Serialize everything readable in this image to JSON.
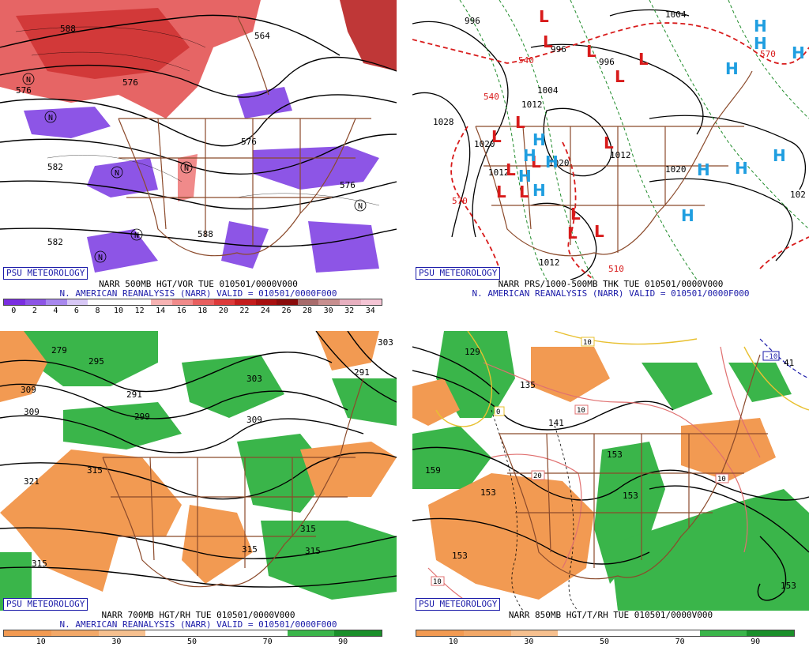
{
  "badge": "PSU METEOROLOGY",
  "panels": [
    {
      "id": "p1",
      "title": "NARR 500MB HGT/VOR TUE 010501/0000V000",
      "subtitle": "N. AMERICAN REANALYSIS (NARR) VALID = 010501/0000F000",
      "colorbar": {
        "labels": [
          "0",
          "2",
          "4",
          "6",
          "8",
          "10",
          "12",
          "14",
          "16",
          "18",
          "20",
          "22",
          "24",
          "26",
          "28",
          "30",
          "32",
          "34"
        ],
        "colors": [
          "#7a2ee0",
          "#8d55e6",
          "#a888ee",
          "#d8c8f6",
          "#ffffff",
          "#ffffff",
          "#ffffff",
          "#f7b3b3",
          "#f08a8a",
          "#e85f5f",
          "#dd3a3a",
          "#c41c1c",
          "#a80f0f",
          "#8a0b0b",
          "#a86b6b",
          "#c88f8f",
          "#e8b0c0",
          "#f5c5d5"
        ]
      },
      "contour_labels": [
        "588",
        "576",
        "576",
        "582",
        "576",
        "582",
        "564",
        "588",
        "576"
      ],
      "symbols": [
        "N",
        "N",
        "N",
        "N",
        "N",
        "N",
        "N"
      ]
    },
    {
      "id": "p2",
      "title": "NARR PRS/1000-500MB THK TUE 010501/0000V000",
      "subtitle": "N. AMERICAN REANALYSIS (NARR) VALID = 010501/0000F000",
      "contour_labels": [
        "996",
        "1004",
        "996",
        "996",
        "1004",
        "1012",
        "1028",
        "1020",
        "1012",
        "1012",
        "1020",
        "1020",
        "1012",
        "102"
      ],
      "thickness_labels": [
        "540",
        "570",
        "570",
        "510",
        "540"
      ],
      "highs": [
        "H",
        "H",
        "H",
        "H",
        "H",
        "H",
        "H",
        "H",
        "H",
        "H",
        "H",
        "H",
        "H"
      ],
      "lows": [
        "L",
        "L",
        "L",
        "L",
        "L",
        "L",
        "L",
        "L",
        "L",
        "L",
        "L",
        "L",
        "L",
        "L",
        "L"
      ],
      "highs_color": "#1f9ee0",
      "lows_color": "#d81b1b"
    },
    {
      "id": "p3",
      "title": "NARR 700MB HGT/RH TUE 010501/0000V000",
      "subtitle": "N. AMERICAN REANALYSIS (NARR) VALID = 010501/0000F000",
      "colorbar": {
        "labels": [
          "10",
          "30",
          "50",
          "70",
          "90"
        ],
        "colors": [
          "#f29a52",
          "#f2a868",
          "#f6c08f",
          "#ffffff",
          "#ffffff",
          "#ffffff",
          "#3ab54a",
          "#1a8f2a"
        ]
      },
      "contour_labels": [
        "279",
        "295",
        "309",
        "309",
        "291",
        "299",
        "303",
        "309",
        "291",
        "321",
        "315",
        "315",
        "315",
        "315",
        "315",
        "303"
      ]
    },
    {
      "id": "p4",
      "title": "NARR 850MB HGT/T/RH TUE 010501/0000V000",
      "subtitle": "",
      "colorbar": {
        "labels": [
          "10",
          "30",
          "50",
          "70",
          "90"
        ],
        "colors": [
          "#f29a52",
          "#f2a868",
          "#f6c08f",
          "#ffffff",
          "#ffffff",
          "#ffffff",
          "#3ab54a",
          "#1a8f2a"
        ]
      },
      "contour_labels": [
        "129",
        "135",
        "141",
        "159",
        "153",
        "153",
        "153",
        "153",
        "153",
        "41"
      ],
      "temp_labels": [
        "0",
        "10",
        "20",
        "10",
        "10",
        "10",
        "-10"
      ]
    }
  ]
}
